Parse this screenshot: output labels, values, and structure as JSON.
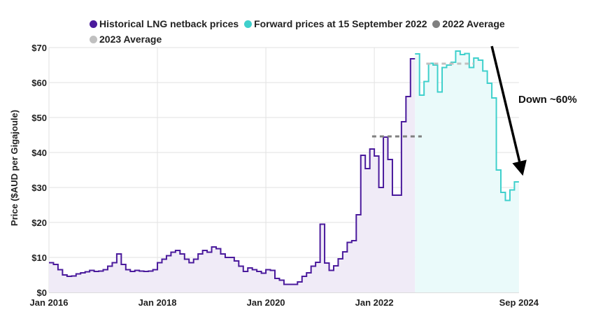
{
  "chart_data": {
    "type": "line",
    "title": "",
    "xlabel": "",
    "ylabel": "Price ($AUD per Gigajoule)",
    "ylim": [
      0,
      70
    ],
    "y_ticks": [
      "$0",
      "$10",
      "$20",
      "$30",
      "$40",
      "$50",
      "$60",
      "$70"
    ],
    "y_tick_values": [
      0,
      10,
      20,
      30,
      40,
      50,
      60,
      70
    ],
    "x_ticks": [
      "Jan 2016",
      "Jan 2018",
      "Jan 2020",
      "Jan 2022",
      "Sep 2024"
    ],
    "x_tick_months": [
      0,
      24,
      48,
      72,
      104
    ],
    "x_start": "Jan 2016",
    "grid": true,
    "legend_position": "top",
    "legend": [
      {
        "label": "Historical LNG netback prices",
        "color": "#4a1a9c"
      },
      {
        "label": "Forward prices at 15 September 2022",
        "color": "#3fd0cc"
      },
      {
        "label": "2022 Average",
        "color": "#808080"
      },
      {
        "label": "2023 Average",
        "color": "#c0c0c0"
      }
    ],
    "series": [
      {
        "name": "Historical LNG netback prices",
        "start_month": 0,
        "style": "step",
        "color": "#4a1a9c",
        "fill": "#f0ebf7",
        "values": [
          8.5,
          8.0,
          6.5,
          5.0,
          4.6,
          4.7,
          5.3,
          5.6,
          5.9,
          6.3,
          6.0,
          6.1,
          6.5,
          7.5,
          8.5,
          11.0,
          8.0,
          6.5,
          6.0,
          6.3,
          6.1,
          6.0,
          6.1,
          6.5,
          8.5,
          9.5,
          10.5,
          11.5,
          12.0,
          11.0,
          9.5,
          8.5,
          9.5,
          11.0,
          12.0,
          11.5,
          13.0,
          12.5,
          11.0,
          10.0,
          10.0,
          9.0,
          7.5,
          6.0,
          7.0,
          6.5,
          6.0,
          5.5,
          6.5,
          6.3,
          4.0,
          3.5,
          2.3,
          2.3,
          2.3,
          3.0,
          4.6,
          5.6,
          7.5,
          8.6,
          19.5,
          8.4,
          6.3,
          7.6,
          9.6,
          11.6,
          14.3,
          14.8,
          22.2,
          39.2,
          35.4,
          41.0,
          39.0,
          30.0,
          44.4,
          38.0,
          27.8,
          27.8,
          48.8,
          56.0,
          66.8
        ]
      },
      {
        "name": "Forward prices at 15 September 2022",
        "start_month": 81,
        "style": "step",
        "color": "#3fd0cc",
        "fill": "#eafafa",
        "values": [
          68.2,
          56.4,
          60.3,
          65.5,
          65.0,
          57.3,
          64.3,
          65.0,
          65.8,
          69.0,
          68.0,
          68.3,
          64.3,
          67.0,
          66.4,
          63.3,
          59.8,
          55.6,
          35.0,
          28.6,
          26.3,
          29.3,
          31.6
        ],
        "fill_end_month": 104
      },
      {
        "name": "2022 Average",
        "value": 44.6,
        "from_month": 71.5,
        "to_month": 82.5,
        "color": "#808080",
        "style": "dashed"
      },
      {
        "name": "2023 Average",
        "value": 65.4,
        "from_month": 83.5,
        "to_month": 94,
        "color": "#c0c0c0",
        "style": "dashed"
      }
    ],
    "annotations": [
      {
        "text": "Down ~60%",
        "arrow_from": {
          "month": 98,
          "value": 70
        },
        "arrow_to": {
          "month": 104.5,
          "value": 35
        }
      }
    ]
  }
}
